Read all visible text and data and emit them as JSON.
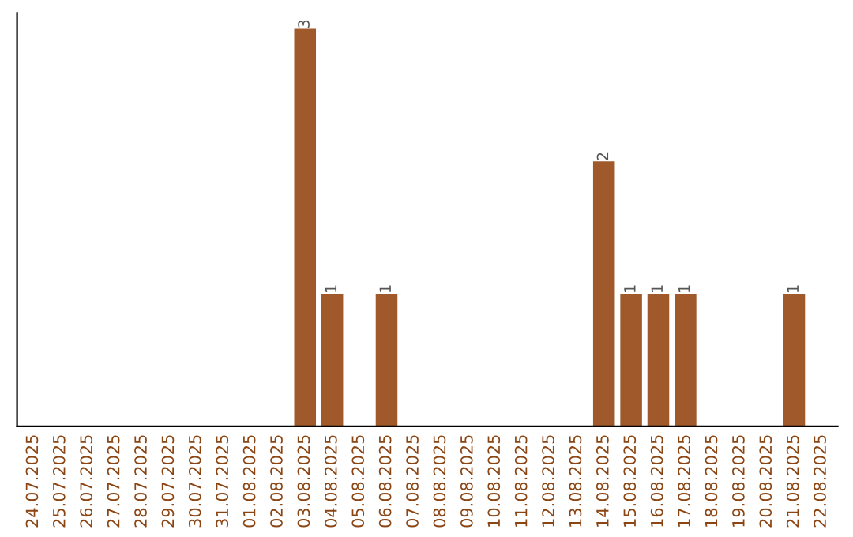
{
  "chart_data": {
    "type": "bar",
    "categories": [
      "24.07.2025",
      "25.07.2025",
      "26.07.2025",
      "27.07.2025",
      "28.07.2025",
      "29.07.2025",
      "30.07.2025",
      "31.07.2025",
      "01.08.2025",
      "02.08.2025",
      "03.08.2025",
      "04.08.2025",
      "05.08.2025",
      "06.08.2025",
      "07.08.2025",
      "08.08.2025",
      "09.08.2025",
      "10.08.2025",
      "11.08.2025",
      "12.08.2025",
      "13.08.2025",
      "14.08.2025",
      "15.08.2025",
      "16.08.2025",
      "17.08.2025",
      "18.08.2025",
      "19.08.2025",
      "20.08.2025",
      "21.08.2025",
      "22.08.2025"
    ],
    "values": [
      0,
      0,
      0,
      0,
      0,
      0,
      0,
      0,
      0,
      0,
      3,
      1,
      0,
      1,
      0,
      0,
      0,
      0,
      0,
      0,
      0,
      2,
      1,
      1,
      1,
      0,
      0,
      0,
      1,
      0
    ],
    "value_labels": [
      null,
      null,
      null,
      null,
      null,
      null,
      null,
      null,
      null,
      null,
      "3",
      "1",
      null,
      "1",
      null,
      null,
      null,
      null,
      null,
      null,
      null,
      "2",
      "1",
      "1",
      "1",
      null,
      null,
      null,
      "1",
      null
    ],
    "color": "#a0592a",
    "tick_labels": "x"
  }
}
